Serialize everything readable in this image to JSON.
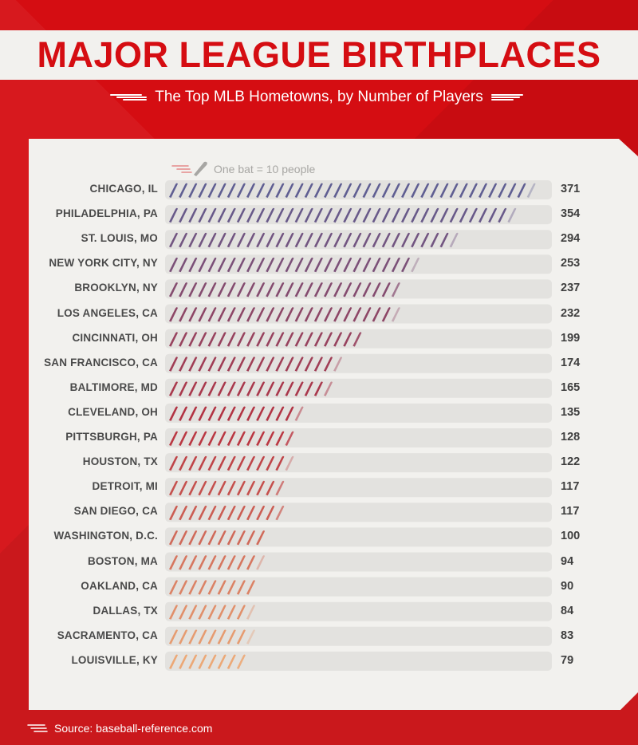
{
  "header": {
    "title": "MAJOR LEAGUE BIRTHPLACES",
    "subtitle": "The Top MLB Hometowns, by Number of Players"
  },
  "legend": {
    "text": "One bat = 10 people",
    "icon": "bat-icon"
  },
  "source": {
    "text": "Source: baseball-reference.com"
  },
  "colors": {
    "background": "#d50d12",
    "panel": "#f2f1ee",
    "track": "#e3e2df",
    "gradient_start": "#5f5e92",
    "gradient_mid": "#b7313f",
    "gradient_end": "#eca876"
  },
  "chart_data": {
    "type": "bar",
    "orientation": "horizontal",
    "title": "MAJOR LEAGUE BIRTHPLACES",
    "subtitle": "The Top MLB Hometowns, by Number of Players",
    "categories": [
      "CHICAGO, IL",
      "PHILADELPHIA, PA",
      "ST. LOUIS, MO",
      "NEW YORK CITY, NY",
      "BROOKLYN, NY",
      "LOS ANGELES, CA",
      "CINCINNATI, OH",
      "SAN FRANCISCO, CA",
      "BALTIMORE, MD",
      "CLEVELAND, OH",
      "PITTSBURGH, PA",
      "HOUSTON, TX",
      "DETROIT, MI",
      "SAN DIEGO, CA",
      "WASHINGTON, D.C.",
      "BOSTON, MA",
      "OAKLAND, CA",
      "DALLAS, TX",
      "SACRAMENTO, CA",
      "LOUISVILLE, KY"
    ],
    "values": [
      371,
      354,
      294,
      253,
      237,
      232,
      199,
      174,
      165,
      135,
      128,
      122,
      117,
      117,
      100,
      94,
      90,
      84,
      83,
      79
    ],
    "unit_per_icon": 10,
    "xlim": [
      0,
      400
    ]
  }
}
